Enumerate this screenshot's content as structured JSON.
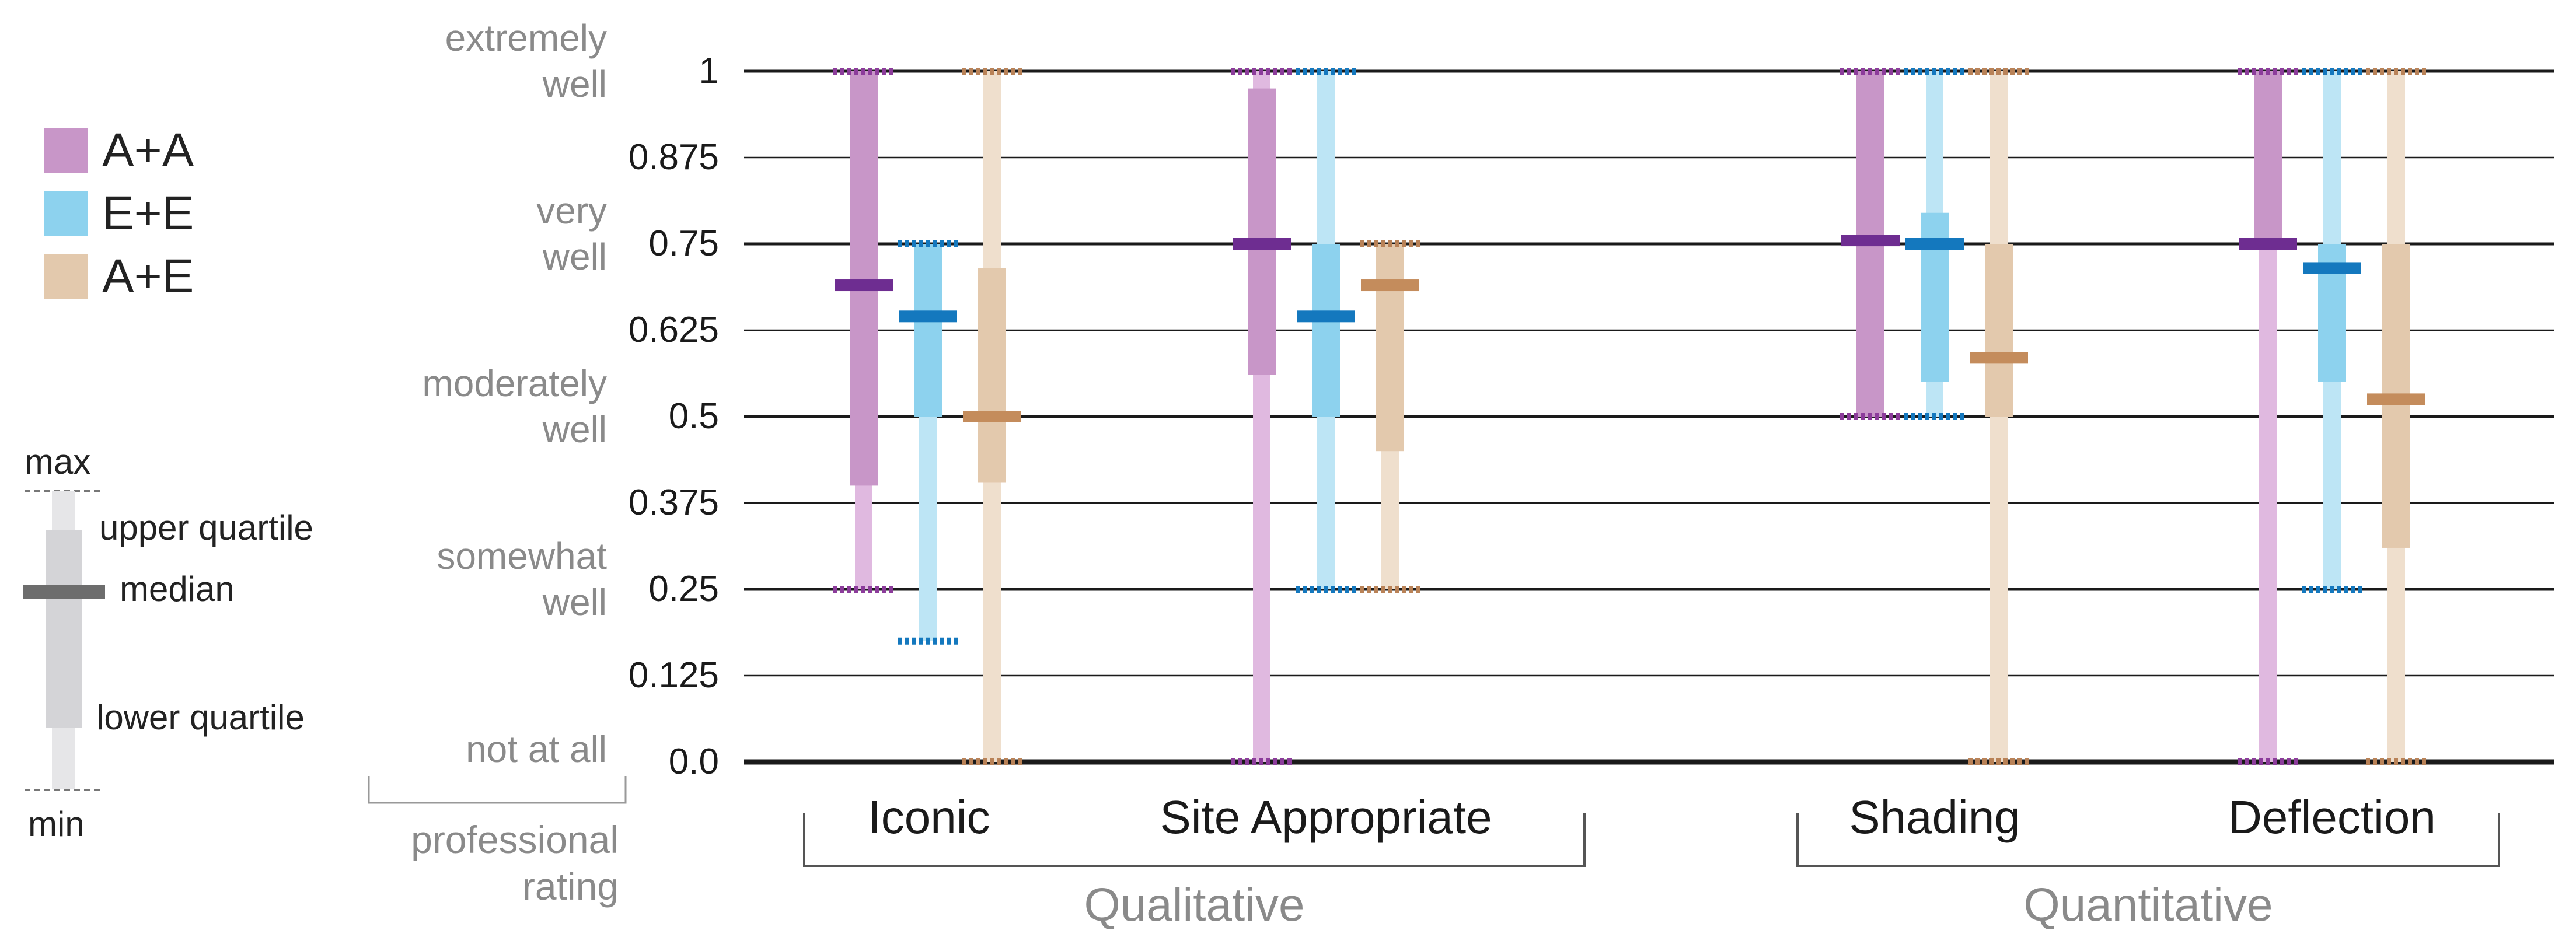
{
  "chart_data": {
    "type": "box",
    "title": "",
    "ylabel": "professional rating",
    "ylim": [
      0,
      1
    ],
    "yticks": [
      "1",
      "0.875",
      "0.75",
      "0.625",
      "0.5",
      "0.375",
      "0.25",
      "0.125",
      "0.0"
    ],
    "rating_labels": [
      {
        "line1": "extremely",
        "line2": "well",
        "value": 1.0
      },
      {
        "line1": "very",
        "line2": "well",
        "value": 0.75
      },
      {
        "line1": "moderately",
        "line2": "well",
        "value": 0.5
      },
      {
        "line1": "somewhat",
        "line2": "well",
        "value": 0.25
      },
      {
        "line1": "not at all",
        "line2": "",
        "value": 0.0
      }
    ],
    "axis_caption_line1": "professional",
    "axis_caption_line2": "rating",
    "groups": [
      {
        "label": "Qualitative",
        "categories": [
          "Iconic",
          "Site Appropriate"
        ]
      },
      {
        "label": "Quantitative",
        "categories": [
          "Shading",
          "Deflection"
        ]
      }
    ],
    "categories": [
      "Iconic",
      "Site Appropriate",
      "Shading",
      "Deflection"
    ],
    "series": [
      {
        "name": "A+A",
        "boxes": [
          {
            "min": 0.25,
            "q1": 0.4,
            "median": 0.69,
            "q3": 1.0,
            "max": 1.0
          },
          {
            "min": 0.0,
            "q1": 0.56,
            "median": 0.75,
            "q3": 0.975,
            "max": 1.0
          },
          {
            "min": 0.5,
            "q1": 0.5,
            "median": 0.755,
            "q3": 1.0,
            "max": 1.0
          },
          {
            "min": 0.0,
            "q1": 0.75,
            "median": 0.75,
            "q3": 1.0,
            "max": 1.0
          }
        ]
      },
      {
        "name": "E+E",
        "boxes": [
          {
            "min": 0.175,
            "q1": 0.5,
            "median": 0.645,
            "q3": 0.75,
            "max": 0.75
          },
          {
            "min": 0.25,
            "q1": 0.5,
            "median": 0.645,
            "q3": 0.75,
            "max": 1.0
          },
          {
            "min": 0.5,
            "q1": 0.55,
            "median": 0.75,
            "q3": 0.795,
            "max": 1.0
          },
          {
            "min": 0.25,
            "q1": 0.55,
            "median": 0.715,
            "q3": 0.75,
            "max": 1.0
          }
        ]
      },
      {
        "name": "A+E",
        "boxes": [
          {
            "min": 0.0,
            "q1": 0.405,
            "median": 0.5,
            "q3": 0.715,
            "max": 1.0
          },
          {
            "min": 0.25,
            "q1": 0.45,
            "median": 0.69,
            "q3": 0.75,
            "max": 0.75
          },
          {
            "min": 0.0,
            "q1": 0.5,
            "median": 0.585,
            "q3": 0.75,
            "max": 1.0
          },
          {
            "min": 0.0,
            "q1": 0.31,
            "median": 0.525,
            "q3": 0.75,
            "max": 1.0
          }
        ]
      }
    ],
    "colors": {
      "A+A": {
        "range": "#e0b9e0",
        "box": "#c896c8",
        "median": "#6e2d91",
        "extreme": "#8c3c9b"
      },
      "E+E": {
        "range": "#bde5f5",
        "box": "#8dd2ee",
        "median": "#1478be",
        "extreme": "#1478be"
      },
      "A+E": {
        "range": "#efdfcd",
        "box": "#e3c9ad",
        "median": "#c48c5c",
        "extreme": "#b98257"
      }
    },
    "legend": {
      "entries": [
        {
          "label": "A+A",
          "color": "#c896c8"
        },
        {
          "label": "E+E",
          "color": "#8dd2ee"
        },
        {
          "label": "A+E",
          "color": "#e3c9ad"
        }
      ]
    },
    "key": {
      "max": "max",
      "upper_quartile": "upper quartile",
      "median": "median",
      "lower_quartile": "lower quartile",
      "min": "min"
    }
  }
}
